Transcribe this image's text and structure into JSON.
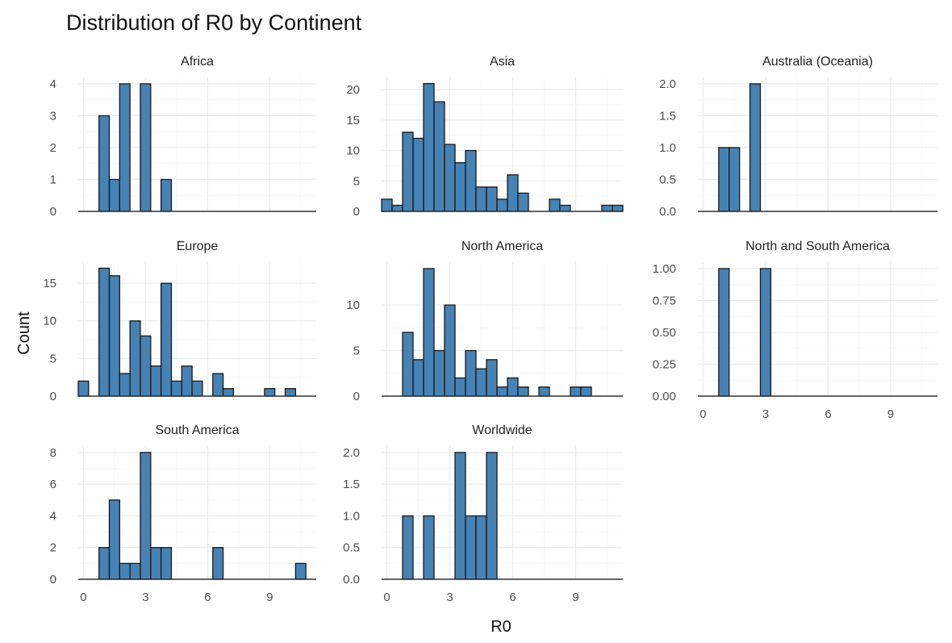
{
  "chart_data": {
    "type": "bar",
    "title": "Distribution of R0 by Continent",
    "xlabel": "R0",
    "ylabel": "Count",
    "bin_width": 0.5,
    "xlim": [
      -0.25,
      11.25
    ],
    "x_ticks": [
      "0",
      "3",
      "6",
      "9"
    ],
    "grid": true,
    "bar_color": "#4682B4",
    "bar_outline": "#1a1a1a",
    "facets": [
      {
        "name": "Africa",
        "ylim": [
          0,
          4.2
        ],
        "y_ticks": [
          "0",
          "1",
          "2",
          "3",
          "4"
        ],
        "bars": [
          {
            "x": 1.0,
            "count": 3
          },
          {
            "x": 1.5,
            "count": 1
          },
          {
            "x": 2.0,
            "count": 4
          },
          {
            "x": 3.0,
            "count": 4
          },
          {
            "x": 4.0,
            "count": 1
          }
        ]
      },
      {
        "name": "Asia",
        "ylim": [
          0,
          22
        ],
        "y_ticks": [
          "0",
          "5",
          "10",
          "15",
          "20"
        ],
        "bars": [
          {
            "x": 0.0,
            "count": 2
          },
          {
            "x": 0.5,
            "count": 1
          },
          {
            "x": 1.0,
            "count": 13
          },
          {
            "x": 1.5,
            "count": 12
          },
          {
            "x": 2.0,
            "count": 21
          },
          {
            "x": 2.5,
            "count": 18
          },
          {
            "x": 3.0,
            "count": 11
          },
          {
            "x": 3.5,
            "count": 8
          },
          {
            "x": 4.0,
            "count": 10
          },
          {
            "x": 4.5,
            "count": 4
          },
          {
            "x": 5.0,
            "count": 4
          },
          {
            "x": 5.5,
            "count": 2
          },
          {
            "x": 6.0,
            "count": 6
          },
          {
            "x": 6.5,
            "count": 3
          },
          {
            "x": 8.0,
            "count": 2
          },
          {
            "x": 8.5,
            "count": 1
          },
          {
            "x": 10.5,
            "count": 1
          },
          {
            "x": 11.0,
            "count": 1
          }
        ]
      },
      {
        "name": "Australia (Oceania)",
        "ylim": [
          0,
          2.1
        ],
        "y_ticks": [
          "0.0",
          "0.5",
          "1.0",
          "1.5",
          "2.0"
        ],
        "bars": [
          {
            "x": 1.0,
            "count": 1
          },
          {
            "x": 1.5,
            "count": 1
          },
          {
            "x": 2.5,
            "count": 2
          }
        ]
      },
      {
        "name": "Europe",
        "ylim": [
          0,
          17.8
        ],
        "y_ticks": [
          "0",
          "5",
          "10",
          "15"
        ],
        "bars": [
          {
            "x": 0.0,
            "count": 2
          },
          {
            "x": 1.0,
            "count": 17
          },
          {
            "x": 1.5,
            "count": 16
          },
          {
            "x": 2.0,
            "count": 3
          },
          {
            "x": 2.5,
            "count": 10
          },
          {
            "x": 3.0,
            "count": 8
          },
          {
            "x": 3.5,
            "count": 4
          },
          {
            "x": 4.0,
            "count": 15
          },
          {
            "x": 4.5,
            "count": 2
          },
          {
            "x": 5.0,
            "count": 4
          },
          {
            "x": 5.5,
            "count": 2
          },
          {
            "x": 6.5,
            "count": 3
          },
          {
            "x": 7.0,
            "count": 1
          },
          {
            "x": 9.0,
            "count": 1
          },
          {
            "x": 10.0,
            "count": 1
          }
        ]
      },
      {
        "name": "North America",
        "ylim": [
          0,
          14.7
        ],
        "y_ticks": [
          "0",
          "5",
          "10"
        ],
        "bars": [
          {
            "x": 1.0,
            "count": 7
          },
          {
            "x": 1.5,
            "count": 4
          },
          {
            "x": 2.0,
            "count": 14
          },
          {
            "x": 2.5,
            "count": 5
          },
          {
            "x": 3.0,
            "count": 10
          },
          {
            "x": 3.5,
            "count": 2
          },
          {
            "x": 4.0,
            "count": 5
          },
          {
            "x": 4.5,
            "count": 3
          },
          {
            "x": 5.0,
            "count": 4
          },
          {
            "x": 5.5,
            "count": 1
          },
          {
            "x": 6.0,
            "count": 2
          },
          {
            "x": 6.5,
            "count": 1
          },
          {
            "x": 7.5,
            "count": 1
          },
          {
            "x": 9.0,
            "count": 1
          },
          {
            "x": 9.5,
            "count": 1
          }
        ]
      },
      {
        "name": "North and South America",
        "ylim": [
          0,
          1.05
        ],
        "y_ticks": [
          "0.00",
          "0.25",
          "0.50",
          "0.75",
          "1.00"
        ],
        "bars": [
          {
            "x": 1.0,
            "count": 1
          },
          {
            "x": 3.0,
            "count": 1
          }
        ]
      },
      {
        "name": "South America",
        "ylim": [
          0,
          8.4
        ],
        "y_ticks": [
          "0",
          "2",
          "4",
          "6",
          "8"
        ],
        "bars": [
          {
            "x": 1.0,
            "count": 2
          },
          {
            "x": 1.5,
            "count": 5
          },
          {
            "x": 2.0,
            "count": 1
          },
          {
            "x": 2.5,
            "count": 1
          },
          {
            "x": 3.0,
            "count": 8
          },
          {
            "x": 3.5,
            "count": 2
          },
          {
            "x": 4.0,
            "count": 2
          },
          {
            "x": 6.5,
            "count": 2
          },
          {
            "x": 10.5,
            "count": 1
          }
        ]
      },
      {
        "name": "Worldwide",
        "ylim": [
          0,
          2.1
        ],
        "y_ticks": [
          "0.0",
          "0.5",
          "1.0",
          "1.5",
          "2.0"
        ],
        "bars": [
          {
            "x": 1.0,
            "count": 1
          },
          {
            "x": 2.0,
            "count": 1
          },
          {
            "x": 3.5,
            "count": 2
          },
          {
            "x": 4.0,
            "count": 1
          },
          {
            "x": 4.5,
            "count": 1
          },
          {
            "x": 5.0,
            "count": 2
          }
        ]
      }
    ]
  }
}
